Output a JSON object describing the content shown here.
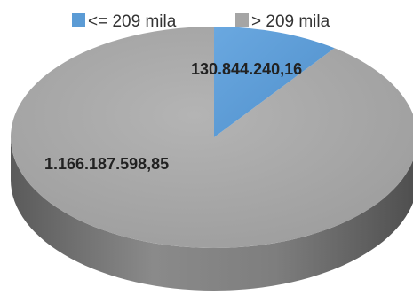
{
  "chart_data": {
    "type": "pie",
    "style": "3d",
    "title": "",
    "legend_position": "top",
    "series": [
      {
        "name": "<= 209 mila",
        "value": 130844240.16,
        "label": "130.844.240,16",
        "color": "#5b9bd5"
      },
      {
        "name": "> 209 mila",
        "value": 1166187598.85,
        "label": "1.166.187.598,85",
        "color": "#a5a5a5"
      }
    ]
  }
}
